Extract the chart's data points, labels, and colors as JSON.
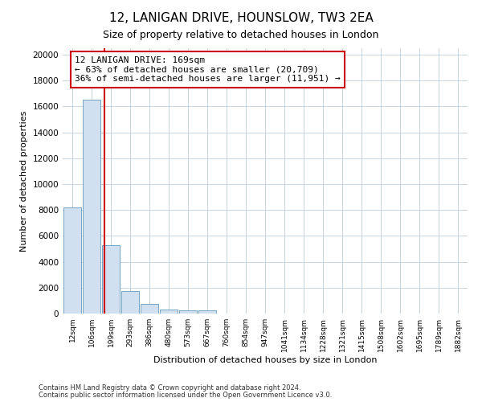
{
  "title": "12, LANIGAN DRIVE, HOUNSLOW, TW3 2EA",
  "subtitle": "Size of property relative to detached houses in London",
  "xlabel": "Distribution of detached houses by size in London",
  "ylabel": "Number of detached properties",
  "categories": [
    "12sqm",
    "106sqm",
    "199sqm",
    "293sqm",
    "386sqm",
    "480sqm",
    "573sqm",
    "667sqm",
    "760sqm",
    "854sqm",
    "947sqm",
    "1041sqm",
    "1134sqm",
    "1228sqm",
    "1321sqm",
    "1415sqm",
    "1508sqm",
    "1602sqm",
    "1695sqm",
    "1789sqm",
    "1882sqm"
  ],
  "bar_heights": [
    8200,
    16500,
    5300,
    1750,
    750,
    300,
    250,
    250,
    0,
    0,
    0,
    0,
    0,
    0,
    0,
    0,
    0,
    0,
    0,
    0,
    0
  ],
  "bar_color": "#d0e0f0",
  "bar_edge_color": "#6699bb",
  "vline_color": "#cc0000",
  "annotation_text": "12 LANIGAN DRIVE: 169sqm\n← 63% of detached houses are smaller (20,709)\n36% of semi-detached houses are larger (11,951) →",
  "annotation_box_color": "#ffffff",
  "annotation_box_edge": "#cc0000",
  "ylim": [
    0,
    20500
  ],
  "yticks": [
    0,
    2000,
    4000,
    6000,
    8000,
    10000,
    12000,
    14000,
    16000,
    18000,
    20000
  ],
  "footer1": "Contains HM Land Registry data © Crown copyright and database right 2024.",
  "footer2": "Contains public sector information licensed under the Open Government Licence v3.0.",
  "bg_color": "#ffffff",
  "grid_color": "#c8d4e4",
  "title_fontsize": 11,
  "subtitle_fontsize": 9,
  "xlabel_fontsize": 8,
  "ylabel_fontsize": 8
}
